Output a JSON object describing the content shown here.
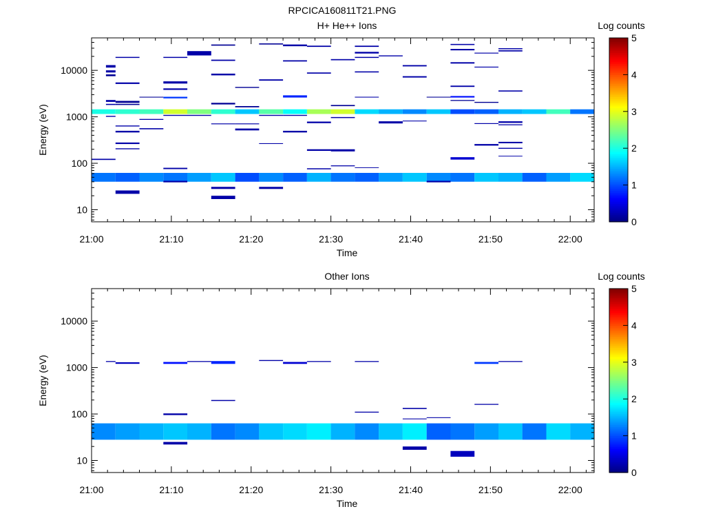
{
  "figure": {
    "title": "RPCICA160811T21.PNG"
  },
  "chart_data": [
    {
      "type": "heatmap",
      "title": "H+ He++ Ions",
      "xlabel": "Time",
      "ylabel": "Energy (eV)",
      "x_ticks": [
        "21:00",
        "21:10",
        "21:20",
        "21:30",
        "21:40",
        "21:50",
        "22:00"
      ],
      "x_range": [
        "21:00",
        "22:03"
      ],
      "y_scale": "log",
      "y_ticks": [
        "10",
        "100",
        "1000",
        "10000"
      ],
      "y_range": [
        5.5,
        50000
      ],
      "colorbar": {
        "label": "Log counts",
        "range": [
          0,
          5
        ],
        "ticks": [
          "0",
          "1",
          "2",
          "3",
          "4",
          "5"
        ],
        "colormap": "jet"
      },
      "cells": [
        [
          21.0,
          21.05,
          62,
          40,
          1.2
        ],
        [
          21.05,
          21.1,
          62,
          40,
          1.1
        ],
        [
          21.1,
          21.15,
          62,
          40,
          1.3
        ],
        [
          21.15,
          21.2,
          62,
          40,
          1.2
        ],
        [
          21.2,
          21.25,
          62,
          40,
          1.4
        ],
        [
          21.25,
          21.3,
          62,
          40,
          1.6
        ],
        [
          21.3,
          21.35,
          62,
          40,
          1.0
        ],
        [
          21.35,
          21.4,
          62,
          40,
          1.3
        ],
        [
          21.4,
          21.45,
          62,
          40,
          1.1
        ],
        [
          21.45,
          21.5,
          62,
          40,
          1.5
        ],
        [
          21.5,
          21.55,
          62,
          40,
          1.2
        ],
        [
          21.55,
          21.6,
          62,
          40,
          1.1
        ],
        [
          21.6,
          21.65,
          62,
          40,
          1.4
        ],
        [
          21.65,
          21.7,
          62,
          40,
          1.6
        ],
        [
          21.7,
          21.75,
          62,
          40,
          1.3
        ],
        [
          21.75,
          21.8,
          62,
          40,
          1.2
        ],
        [
          21.8,
          21.85,
          62,
          40,
          1.6
        ],
        [
          21.85,
          21.9,
          62,
          40,
          1.5
        ],
        [
          21.9,
          21.95,
          62,
          40,
          1.1
        ],
        [
          21.95,
          22.0,
          62,
          40,
          1.4
        ],
        [
          22.0,
          22.05,
          62,
          40,
          1.7
        ],
        [
          21.0,
          21.05,
          1450,
          1150,
          2.0
        ],
        [
          21.05,
          21.1,
          1450,
          1150,
          2.1
        ],
        [
          21.1,
          21.15,
          1450,
          1150,
          2.2
        ],
        [
          21.15,
          21.2,
          1450,
          1150,
          2.9
        ],
        [
          21.2,
          21.25,
          1450,
          1150,
          2.5
        ],
        [
          21.25,
          21.3,
          1450,
          1150,
          2.1
        ],
        [
          21.3,
          21.35,
          1450,
          1150,
          1.6
        ],
        [
          21.35,
          21.4,
          1450,
          1150,
          2.3
        ],
        [
          21.4,
          21.45,
          1450,
          1150,
          1.9
        ],
        [
          21.45,
          21.5,
          1450,
          1150,
          2.7
        ],
        [
          21.5,
          21.55,
          1450,
          1150,
          2.9
        ],
        [
          21.55,
          21.6,
          1450,
          1150,
          1.7
        ],
        [
          21.6,
          21.65,
          1450,
          1150,
          1.5
        ],
        [
          21.65,
          21.7,
          1450,
          1150,
          1.3
        ],
        [
          21.7,
          21.75,
          1450,
          1150,
          1.6
        ],
        [
          21.75,
          21.8,
          1450,
          1150,
          1.0
        ],
        [
          21.8,
          21.85,
          1450,
          1150,
          1.1
        ],
        [
          21.85,
          21.9,
          1450,
          1150,
          1.5
        ],
        [
          21.9,
          21.95,
          1450,
          1150,
          1.6
        ],
        [
          21.95,
          22.0,
          1450,
          1150,
          2.2
        ],
        [
          22.0,
          22.05,
          1450,
          1150,
          1.2
        ],
        [
          21.03,
          21.05,
          13000,
          11500,
          0.2
        ],
        [
          21.03,
          21.05,
          10000,
          9000,
          0.2
        ],
        [
          21.03,
          21.05,
          8200,
          7500,
          0.1
        ],
        [
          21.03,
          21.05,
          2300,
          2100,
          0.2
        ],
        [
          21.03,
          21.05,
          1900,
          1800,
          0.2
        ],
        [
          21.05,
          21.1,
          19500,
          18500,
          0.2
        ],
        [
          21.05,
          21.1,
          5500,
          5100,
          0.2
        ],
        [
          21.05,
          21.1,
          2200,
          2000,
          0.1
        ],
        [
          21.05,
          21.1,
          1900,
          1800,
          0.1
        ],
        [
          21.1,
          21.15,
          2700,
          2600,
          0.1
        ],
        [
          21.15,
          21.2,
          19500,
          18500,
          0.2
        ],
        [
          21.15,
          21.2,
          5800,
          5200,
          0.2
        ],
        [
          21.15,
          21.2,
          4100,
          3800,
          0.2
        ],
        [
          21.15,
          21.2,
          2700,
          2500,
          0.9
        ],
        [
          21.2,
          21.25,
          26000,
          21000,
          0.2
        ],
        [
          21.25,
          21.3,
          36000,
          34000,
          0.1
        ],
        [
          21.25,
          21.3,
          17000,
          16000,
          0.2
        ],
        [
          21.25,
          21.3,
          8500,
          7800,
          0.2
        ],
        [
          21.25,
          21.3,
          2000,
          1850,
          0.1
        ],
        [
          21.3,
          21.35,
          4400,
          4200,
          0.1
        ],
        [
          21.3,
          21.35,
          1700,
          1600,
          0.1
        ],
        [
          21.35,
          21.4,
          6400,
          6000,
          0.2
        ],
        [
          21.35,
          21.4,
          38000,
          36000,
          0.1
        ],
        [
          21.4,
          21.45,
          36000,
          33000,
          0.2
        ],
        [
          21.4,
          21.45,
          16500,
          15500,
          0.2
        ],
        [
          21.4,
          21.45,
          2900,
          2600,
          0.8
        ],
        [
          21.45,
          21.5,
          34000,
          32000,
          0.2
        ],
        [
          21.45,
          21.5,
          9000,
          8500,
          0.2
        ],
        [
          21.5,
          21.55,
          17500,
          16500,
          0.2
        ],
        [
          21.5,
          21.55,
          1800,
          1700,
          0.1
        ],
        [
          21.55,
          21.6,
          34000,
          32000,
          0.2
        ],
        [
          21.55,
          21.6,
          25000,
          23000,
          0.2
        ],
        [
          21.55,
          21.6,
          19500,
          18500,
          0.2
        ],
        [
          21.55,
          21.6,
          9500,
          9000,
          0.2
        ],
        [
          21.55,
          21.6,
          2700,
          2600,
          0.2
        ],
        [
          21.6,
          21.65,
          21000,
          20000,
          0.2
        ],
        [
          21.65,
          21.7,
          13000,
          12200,
          0.2
        ],
        [
          21.65,
          21.7,
          7500,
          7000,
          0.2
        ],
        [
          21.7,
          21.75,
          2700,
          2600,
          0.1
        ],
        [
          21.75,
          21.8,
          37000,
          35000,
          0.2
        ],
        [
          21.75,
          21.8,
          29000,
          27000,
          0.2
        ],
        [
          21.75,
          21.8,
          15000,
          14000,
          0.2
        ],
        [
          21.75,
          21.8,
          4700,
          4400,
          0.2
        ],
        [
          21.75,
          21.8,
          2800,
          2600,
          0.7
        ],
        [
          21.75,
          21.8,
          2300,
          2200,
          0.1
        ],
        [
          21.8,
          21.85,
          24000,
          23000,
          0.2
        ],
        [
          21.8,
          21.85,
          12000,
          11500,
          0.2
        ],
        [
          21.8,
          21.85,
          2100,
          2000,
          0.1
        ],
        [
          21.85,
          21.9,
          30000,
          28500,
          0.2
        ],
        [
          21.85,
          21.9,
          27000,
          25500,
          0.2
        ],
        [
          21.85,
          21.9,
          3700,
          3500,
          0.2
        ],
        [
          21.03,
          21.05,
          1050,
          1000,
          0.2
        ],
        [
          21.05,
          21.1,
          650,
          620,
          0.2
        ],
        [
          21.05,
          21.1,
          500,
          460,
          0.2
        ],
        [
          21.05,
          21.1,
          280,
          260,
          0.2
        ],
        [
          21.05,
          21.1,
          210,
          200,
          0.2
        ],
        [
          21.1,
          21.15,
          900,
          860,
          0.2
        ],
        [
          21.1,
          21.15,
          570,
          540,
          0.2
        ],
        [
          21.15,
          21.2,
          1100,
          1050,
          0.2
        ],
        [
          21.15,
          21.2,
          80,
          75,
          0.2
        ],
        [
          21.2,
          21.25,
          1100,
          1050,
          0.2
        ],
        [
          21.25,
          21.3,
          720,
          690,
          0.2
        ],
        [
          21.3,
          21.35,
          720,
          690,
          0.2
        ],
        [
          21.3,
          21.35,
          560,
          510,
          0.2
        ],
        [
          21.35,
          21.4,
          1100,
          1050,
          0.2
        ],
        [
          21.35,
          21.4,
          270,
          260,
          0.2
        ],
        [
          21.4,
          21.45,
          1100,
          1050,
          0.2
        ],
        [
          21.4,
          21.45,
          500,
          460,
          0.2
        ],
        [
          21.45,
          21.5,
          790,
          730,
          0.2
        ],
        [
          21.45,
          21.5,
          200,
          185,
          0.2
        ],
        [
          21.45,
          21.5,
          78,
          74,
          0.2
        ],
        [
          21.5,
          21.55,
          990,
          940,
          0.2
        ],
        [
          21.5,
          21.55,
          200,
          180,
          0.2
        ],
        [
          21.5,
          21.55,
          90,
          86,
          0.2
        ],
        [
          21.55,
          21.6,
          82,
          80,
          0.2
        ],
        [
          21.6,
          21.65,
          800,
          720,
          0.2
        ],
        [
          21.65,
          21.7,
          830,
          800,
          0.2
        ],
        [
          21.75,
          21.8,
          135,
          120,
          0.4
        ],
        [
          21.8,
          21.85,
          730,
          700,
          0.2
        ],
        [
          21.8,
          21.85,
          260,
          240,
          0.2
        ],
        [
          21.85,
          21.9,
          800,
          740,
          0.2
        ],
        [
          21.85,
          21.9,
          690,
          660,
          0.2
        ],
        [
          21.85,
          21.9,
          290,
          270,
          0.2
        ],
        [
          21.85,
          21.9,
          215,
          205,
          0.2
        ],
        [
          21.85,
          21.9,
          145,
          140,
          0.2
        ],
        [
          21.0,
          21.05,
          125,
          118,
          0.2
        ],
        [
          21.05,
          21.1,
          26,
          22,
          0.2
        ],
        [
          21.15,
          21.2,
          42,
          39,
          0.2
        ],
        [
          21.25,
          21.3,
          31,
          28,
          0.2
        ],
        [
          21.25,
          21.3,
          20,
          17,
          0.2
        ],
        [
          21.35,
          21.4,
          31,
          28,
          0.2
        ],
        [
          21.7,
          21.75,
          42,
          39,
          0.2
        ]
      ]
    },
    {
      "type": "heatmap",
      "title": "Other Ions",
      "xlabel": "Time",
      "ylabel": "Energy (eV)",
      "x_ticks": [
        "21:00",
        "21:10",
        "21:20",
        "21:30",
        "21:40",
        "21:50",
        "22:00"
      ],
      "x_range": [
        "21:00",
        "22:03"
      ],
      "y_scale": "log",
      "y_ticks": [
        "10",
        "100",
        "1000",
        "10000"
      ],
      "y_range": [
        5.5,
        50000
      ],
      "colorbar": {
        "label": "Log counts",
        "range": [
          0,
          5
        ],
        "ticks": [
          "0",
          "1",
          "2",
          "3",
          "4",
          "5"
        ],
        "colormap": "jet"
      },
      "cells": [
        [
          21.0,
          21.05,
          63,
          28,
          1.3
        ],
        [
          21.05,
          21.1,
          63,
          28,
          1.4
        ],
        [
          21.1,
          21.15,
          63,
          28,
          1.5
        ],
        [
          21.15,
          21.2,
          63,
          28,
          1.6
        ],
        [
          21.2,
          21.25,
          63,
          28,
          1.5
        ],
        [
          21.25,
          21.3,
          63,
          28,
          1.2
        ],
        [
          21.3,
          21.35,
          63,
          28,
          1.3
        ],
        [
          21.35,
          21.4,
          63,
          28,
          1.6
        ],
        [
          21.4,
          21.45,
          63,
          28,
          1.7
        ],
        [
          21.45,
          21.5,
          63,
          28,
          1.8
        ],
        [
          21.5,
          21.55,
          63,
          28,
          1.5
        ],
        [
          21.55,
          21.6,
          63,
          28,
          1.3
        ],
        [
          21.6,
          21.65,
          63,
          28,
          1.6
        ],
        [
          21.65,
          21.7,
          63,
          28,
          1.8
        ],
        [
          21.7,
          21.75,
          63,
          28,
          1.1
        ],
        [
          21.75,
          21.8,
          63,
          28,
          1.2
        ],
        [
          21.8,
          21.85,
          63,
          28,
          1.4
        ],
        [
          21.85,
          21.9,
          63,
          28,
          1.6
        ],
        [
          21.9,
          21.95,
          63,
          28,
          1.2
        ],
        [
          21.95,
          22.0,
          63,
          28,
          1.7
        ],
        [
          22.0,
          22.05,
          63,
          28,
          1.5
        ],
        [
          21.03,
          21.05,
          1380,
          1320,
          0.2
        ],
        [
          21.05,
          21.1,
          1300,
          1200,
          0.3
        ],
        [
          21.15,
          21.2,
          1320,
          1200,
          0.7
        ],
        [
          21.2,
          21.25,
          1380,
          1320,
          0.2
        ],
        [
          21.25,
          21.3,
          1380,
          1200,
          0.8
        ],
        [
          21.35,
          21.4,
          1450,
          1380,
          0.2
        ],
        [
          21.4,
          21.45,
          1320,
          1200,
          0.4
        ],
        [
          21.45,
          21.5,
          1380,
          1320,
          0.2
        ],
        [
          21.55,
          21.6,
          1380,
          1320,
          0.2
        ],
        [
          21.8,
          21.85,
          1320,
          1200,
          0.9
        ],
        [
          21.85,
          21.9,
          1380,
          1320,
          0.2
        ],
        [
          21.15,
          21.2,
          103,
          95,
          0.2
        ],
        [
          21.25,
          21.3,
          200,
          190,
          0.2
        ],
        [
          21.55,
          21.6,
          112,
          107,
          0.2
        ],
        [
          21.65,
          21.7,
          135,
          128,
          0.2
        ],
        [
          21.65,
          21.7,
          80,
          77,
          0.2
        ],
        [
          21.7,
          21.75,
          85,
          82,
          0.2
        ],
        [
          21.8,
          21.85,
          165,
          158,
          0.2
        ],
        [
          21.15,
          21.2,
          25,
          22,
          0.2
        ],
        [
          21.65,
          21.7,
          20,
          17,
          0.2
        ],
        [
          21.75,
          21.8,
          16,
          12,
          0.3
        ]
      ]
    }
  ]
}
